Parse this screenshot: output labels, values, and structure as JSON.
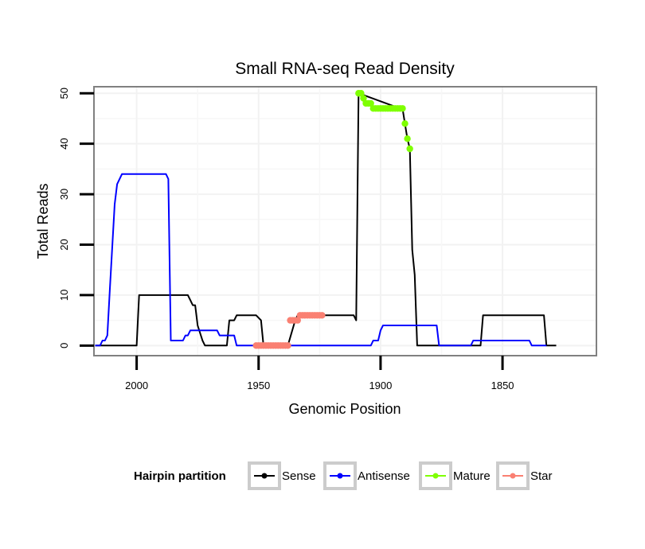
{
  "chart_data": {
    "type": "line",
    "title": "Small RNA-seq Read Density",
    "xlabel": "Genomic Position",
    "ylabel": "Total Reads",
    "xlim": [
      2017.5,
      1811.5
    ],
    "ylim": [
      -2,
      51.3
    ],
    "x_ticks": [
      2000,
      1950,
      1900,
      1850
    ],
    "y_ticks": [
      0,
      10,
      20,
      30,
      40,
      50
    ],
    "legend": {
      "title": "Hairpin partition",
      "position": "bottom",
      "entries": [
        {
          "name": "Sense",
          "color": "#000000"
        },
        {
          "name": "Antisense",
          "color": "#0000ff"
        },
        {
          "name": "Mature",
          "color": "#7fff00"
        },
        {
          "name": "Star",
          "color": "#fa8072"
        }
      ]
    },
    "series": [
      {
        "name": "Sense",
        "color": "#000000",
        "style": "line",
        "points": [
          [
            2017,
            0
          ],
          [
            2000,
            0
          ],
          [
            1999,
            10
          ],
          [
            1979,
            10
          ],
          [
            1978,
            9
          ],
          [
            1977,
            8
          ],
          [
            1976,
            8
          ],
          [
            1975,
            4
          ],
          [
            1973,
            1
          ],
          [
            1972,
            0
          ],
          [
            1963,
            0
          ],
          [
            1962,
            5
          ],
          [
            1960,
            5
          ],
          [
            1959,
            6
          ],
          [
            1951,
            6
          ],
          [
            1949,
            5
          ],
          [
            1948,
            0
          ],
          [
            1938,
            0
          ],
          [
            1935,
            5
          ],
          [
            1934,
            6
          ],
          [
            1911,
            6
          ],
          [
            1910,
            5
          ],
          [
            1909,
            50
          ],
          [
            1892,
            47
          ],
          [
            1891,
            47
          ],
          [
            1890,
            44
          ],
          [
            1889,
            41
          ],
          [
            1888,
            39
          ],
          [
            1887,
            19
          ],
          [
            1886,
            14
          ],
          [
            1885,
            0
          ],
          [
            1859,
            0
          ],
          [
            1858,
            6
          ],
          [
            1833,
            6
          ],
          [
            1832,
            0
          ],
          [
            1828,
            0
          ]
        ]
      },
      {
        "name": "Antisense",
        "color": "#0000ff",
        "style": "line",
        "points": [
          [
            2017,
            0
          ],
          [
            2015,
            0
          ],
          [
            2014,
            1
          ],
          [
            2013,
            1
          ],
          [
            2012,
            2
          ],
          [
            2011,
            11
          ],
          [
            2009,
            28
          ],
          [
            2008,
            32
          ],
          [
            2006,
            34
          ],
          [
            1988,
            34
          ],
          [
            1987,
            33
          ],
          [
            1986,
            1
          ],
          [
            1981,
            1
          ],
          [
            1980,
            2
          ],
          [
            1979,
            2
          ],
          [
            1978,
            3
          ],
          [
            1967,
            3
          ],
          [
            1966,
            2
          ],
          [
            1960,
            2
          ],
          [
            1959,
            0
          ],
          [
            1938,
            0
          ],
          [
            1904,
            0
          ],
          [
            1903,
            1
          ],
          [
            1901,
            1
          ],
          [
            1900,
            3
          ],
          [
            1899,
            4
          ],
          [
            1877,
            4
          ],
          [
            1876,
            0
          ],
          [
            1863,
            0
          ],
          [
            1862,
            1
          ],
          [
            1839,
            1
          ],
          [
            1838,
            0
          ],
          [
            1832,
            0
          ]
        ]
      },
      {
        "name": "Mature",
        "color": "#7fff00",
        "style": "points",
        "points": [
          [
            1909,
            50
          ],
          [
            1908,
            50
          ],
          [
            1907,
            49
          ],
          [
            1906,
            48
          ],
          [
            1905,
            48
          ],
          [
            1904,
            48
          ],
          [
            1903,
            47
          ],
          [
            1902,
            47
          ],
          [
            1901,
            47
          ],
          [
            1900,
            47
          ],
          [
            1899,
            47
          ],
          [
            1898,
            47
          ],
          [
            1897,
            47
          ],
          [
            1896,
            47
          ],
          [
            1895,
            47
          ],
          [
            1894,
            47
          ],
          [
            1893,
            47
          ],
          [
            1892,
            47
          ],
          [
            1891,
            47
          ],
          [
            1890,
            44
          ],
          [
            1889,
            41
          ],
          [
            1888,
            39
          ]
        ]
      },
      {
        "name": "Star",
        "color": "#fa8072",
        "style": "points",
        "points": [
          [
            1951,
            0
          ],
          [
            1950,
            0
          ],
          [
            1949,
            0
          ],
          [
            1948,
            0
          ],
          [
            1947,
            0
          ],
          [
            1946,
            0
          ],
          [
            1945,
            0
          ],
          [
            1944,
            0
          ],
          [
            1943,
            0
          ],
          [
            1942,
            0
          ],
          [
            1941,
            0
          ],
          [
            1940,
            0
          ],
          [
            1939,
            0
          ],
          [
            1938,
            0
          ],
          [
            1937,
            5
          ],
          [
            1936,
            5
          ],
          [
            1935,
            5
          ],
          [
            1934,
            5
          ],
          [
            1933,
            6
          ],
          [
            1932,
            6
          ],
          [
            1931,
            6
          ],
          [
            1930,
            6
          ],
          [
            1929,
            6
          ],
          [
            1928,
            6
          ],
          [
            1927,
            6
          ],
          [
            1926,
            6
          ],
          [
            1925,
            6
          ],
          [
            1924,
            6
          ]
        ]
      }
    ]
  }
}
